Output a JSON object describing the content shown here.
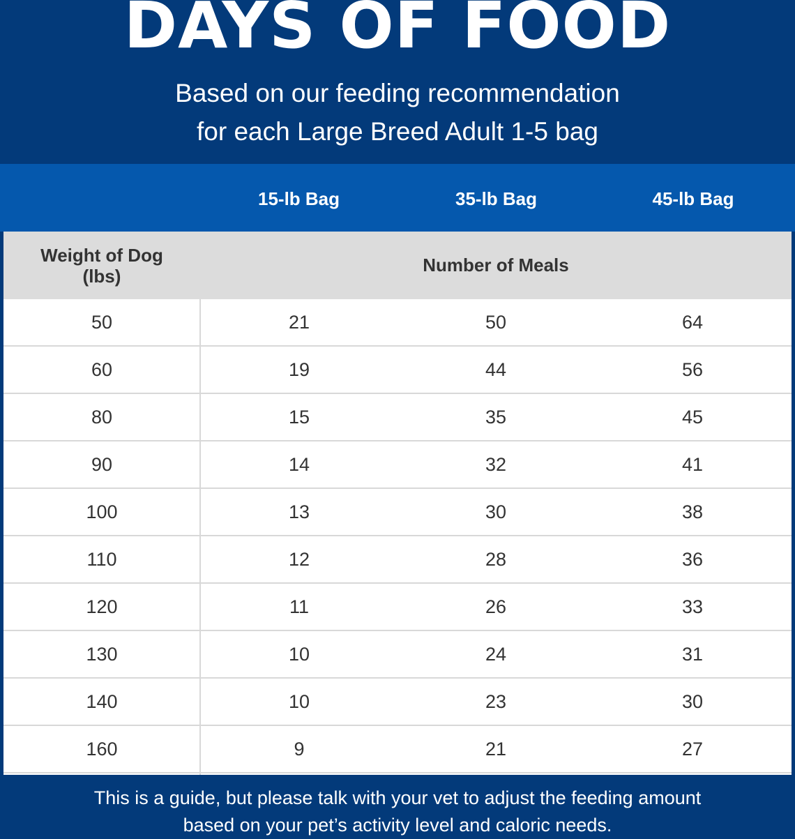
{
  "header": {
    "title": "DAYS OF FOOD",
    "subtitle_line1": "Based on our feeding recommendation",
    "subtitle_line2": "for each Large Breed Adult 1-5 bag"
  },
  "colors": {
    "background_navy": "#033a7a",
    "header_blue": "#0558ad",
    "subheader_gray": "#dcdcdc"
  },
  "chart_data": {
    "type": "table",
    "title": "DAYS OF FOOD",
    "subtitle": "Based on our feeding recommendation for each Large Breed Adult 1-5 bag",
    "columns": [
      "15-lb Bag",
      "35-lb Bag",
      "45-lb Bag"
    ],
    "row_header_label": "Weight of Dog (lbs)",
    "value_label": "Number of Meals",
    "rows": [
      {
        "weight": "50",
        "values": [
          "21",
          "50",
          "64"
        ]
      },
      {
        "weight": "60",
        "values": [
          "19",
          "44",
          "56"
        ]
      },
      {
        "weight": "80",
        "values": [
          "15",
          "35",
          "45"
        ]
      },
      {
        "weight": "90",
        "values": [
          "14",
          "32",
          "41"
        ]
      },
      {
        "weight": "100",
        "values": [
          "13",
          "30",
          "38"
        ]
      },
      {
        "weight": "110",
        "values": [
          "12",
          "28",
          "36"
        ]
      },
      {
        "weight": "120",
        "values": [
          "11",
          "26",
          "33"
        ]
      },
      {
        "weight": "130",
        "values": [
          "10",
          "24",
          "31"
        ]
      },
      {
        "weight": "140",
        "values": [
          "10",
          "23",
          "30"
        ]
      },
      {
        "weight": "160",
        "values": [
          "9",
          "21",
          "27"
        ]
      }
    ]
  },
  "table": {
    "weight_label_line1": "Weight of Dog",
    "weight_label_line2": "(lbs)"
  },
  "footer": {
    "line1": "This is a guide, but please talk with your vet to adjust the feeding amount",
    "line2": "based on your pet’s activity level and caloric needs."
  }
}
